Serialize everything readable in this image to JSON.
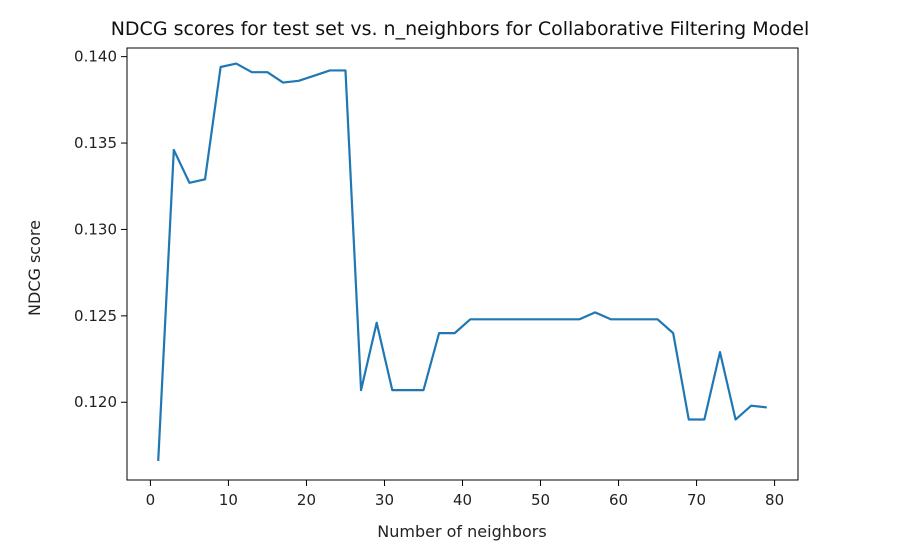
{
  "chart_data": {
    "type": "line",
    "title": "NDCG scores for test set vs. n_neighbors for Collaborative Filtering Model",
    "xlabel": "Number of neighbors",
    "ylabel": "NDCG score",
    "xlim": [
      -3,
      83
    ],
    "ylim": [
      0.1155,
      0.1405
    ],
    "xticks": [
      0,
      10,
      20,
      30,
      40,
      50,
      60,
      70,
      80
    ],
    "yticks": [
      0.12,
      0.125,
      0.13,
      0.135,
      0.14
    ],
    "ytick_labels": [
      "0.120",
      "0.125",
      "0.130",
      "0.135",
      "0.140"
    ],
    "grid": false,
    "series": [
      {
        "color": "#1f77b4",
        "x": [
          1,
          3,
          5,
          7,
          9,
          11,
          13,
          15,
          17,
          19,
          21,
          23,
          25,
          27,
          29,
          31,
          33,
          35,
          37,
          39,
          41,
          43,
          45,
          47,
          49,
          51,
          53,
          55,
          57,
          59,
          61,
          63,
          65,
          67,
          69,
          71,
          73,
          75,
          77,
          79
        ],
        "y": [
          0.1166,
          0.1346,
          0.1327,
          0.1329,
          0.1394,
          0.1396,
          0.1391,
          0.1391,
          0.1385,
          0.1386,
          0.1389,
          0.1392,
          0.1392,
          0.1207,
          0.1246,
          0.1207,
          0.1207,
          0.1207,
          0.124,
          0.124,
          0.1248,
          0.1248,
          0.1248,
          0.1248,
          0.1248,
          0.1248,
          0.1248,
          0.1248,
          0.1252,
          0.1248,
          0.1248,
          0.1248,
          0.1248,
          0.124,
          0.119,
          0.119,
          0.1229,
          0.119,
          0.1198,
          0.1197
        ]
      }
    ]
  }
}
